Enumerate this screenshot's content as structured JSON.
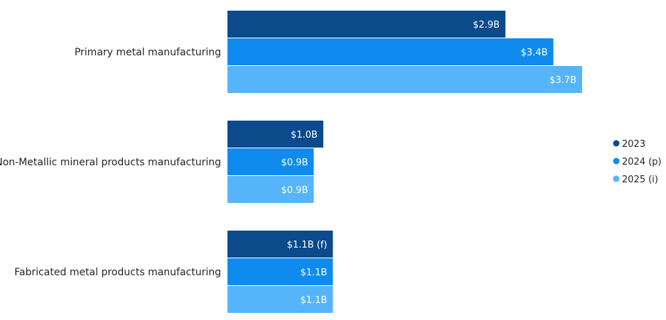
{
  "chart_data": {
    "type": "bar",
    "orientation": "horizontal",
    "categories": [
      "Primary metal manufacturing",
      "Non-Metallic mineral products manufacturing",
      "Fabricated metal products manufacturing"
    ],
    "series": [
      {
        "name": "2023",
        "color": "#0B4A8B",
        "values": [
          2.9,
          1.0,
          1.1
        ],
        "labels": [
          "$2.9B",
          "$1.0B",
          "$1.1B (f)"
        ]
      },
      {
        "name": "2024 (p)",
        "color": "#0F8BF0",
        "values": [
          3.4,
          0.9,
          1.1
        ],
        "labels": [
          "$3.4B",
          "$0.9B",
          "$1.1B"
        ]
      },
      {
        "name": "2025 (i)",
        "color": "#55B4FA",
        "values": [
          3.7,
          0.9,
          1.1
        ],
        "labels": [
          "$3.7B",
          "$0.9B",
          "$1.1B"
        ]
      }
    ],
    "unit": "$B",
    "xlim": [
      0,
      3.7
    ],
    "grid": false,
    "legend_position": "right"
  }
}
